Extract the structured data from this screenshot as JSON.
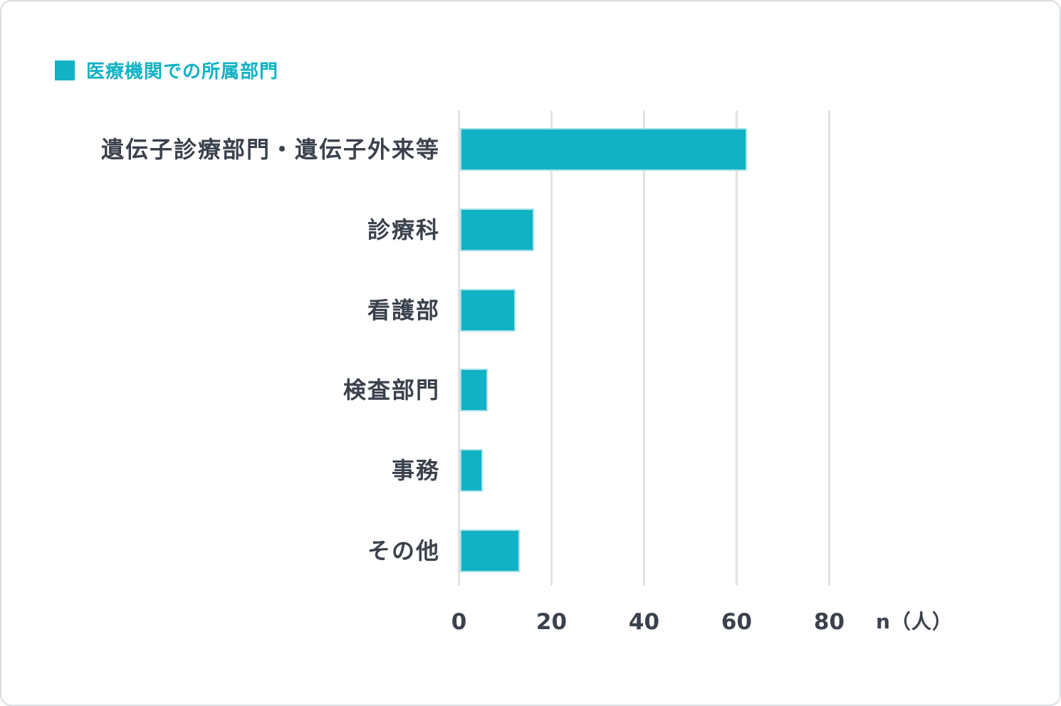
{
  "chart_data": {
    "type": "bar",
    "orientation": "horizontal",
    "title": "医療機関での所属部門",
    "categories": [
      "遺伝子診療部門・遺伝子外来等",
      "診療科",
      "看護部",
      "検査部門",
      "事務",
      "その他"
    ],
    "values": [
      62,
      16,
      12,
      6,
      5,
      13
    ],
    "xlabel": "n（人）",
    "x_ticks": [
      0,
      20,
      40,
      60,
      80
    ],
    "xlim": [
      0,
      80
    ],
    "grid": true,
    "legend_position": "top-left",
    "colors": {
      "bar": "#10b2c3",
      "bar_edge": "#a5e1e8",
      "accent": "#10b2c3",
      "text": "#3b414c",
      "grid": "#e2e2e2",
      "card_border": "#d9dde2"
    }
  }
}
